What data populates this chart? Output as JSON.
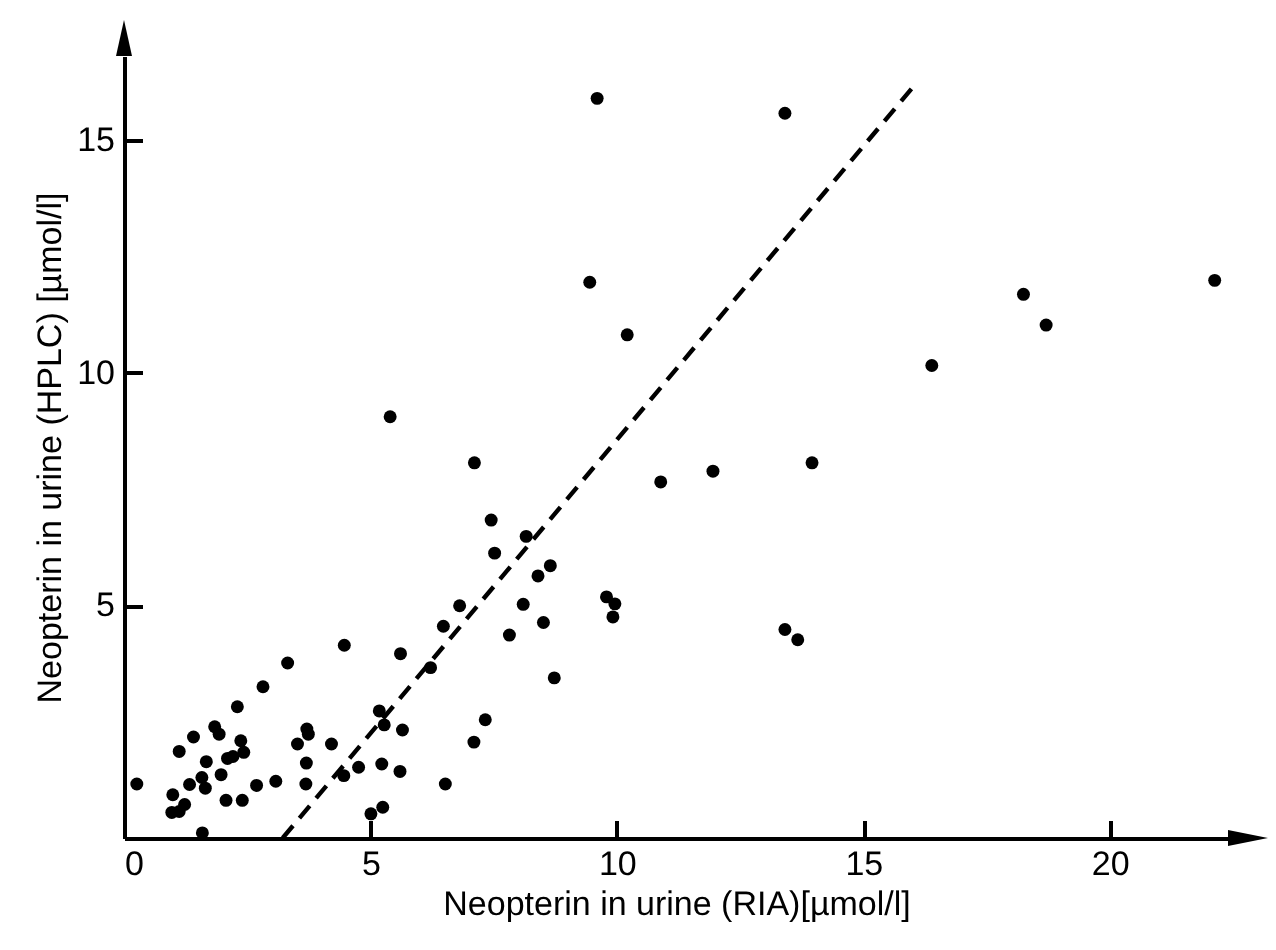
{
  "chart_data": {
    "type": "scatter",
    "xlabel": "Neopterin in urine (RIA)[µmol/l]",
    "ylabel": "Neopterin in urine (HPLC) [µmol/l]",
    "xlim": [
      0,
      22.4
    ],
    "ylim": [
      0,
      16.8
    ],
    "xticks": [
      0,
      5,
      10,
      15,
      20
    ],
    "yticks": [
      5,
      10,
      15
    ],
    "series": [
      {
        "color": "#000000",
        "marker": "circle",
        "x": [
          0.26,
          0.99,
          0.97,
          1.12,
          1.23,
          1.12,
          1.41,
          1.33,
          1.59,
          1.58,
          1.65,
          1.67,
          1.84,
          1.97,
          1.93,
          2.1,
          2.21,
          2.07,
          2.37,
          2.43,
          2.4,
          2.3,
          2.69,
          2.82,
          3.08,
          3.32,
          3.52,
          3.71,
          3.74,
          3.7,
          3.69,
          4.21,
          4.47,
          4.46,
          4.76,
          5.01,
          5.25,
          5.18,
          5.28,
          5.23,
          5.65,
          5.6,
          5.61,
          6.22,
          6.52,
          6.48,
          6.81,
          7.1,
          7.33,
          7.45,
          7.52,
          7.82,
          8.1,
          8.16,
          8.4,
          8.51,
          8.65,
          8.73,
          9.79,
          9.96,
          9.92,
          9.6,
          9.45,
          10.21,
          5.4,
          7.11,
          13.41,
          18.25,
          22.13,
          18.71,
          16.39,
          10.89,
          11.95,
          13.96,
          13.41,
          13.67
        ],
        "values": [
          1.16,
          0.93,
          0.55,
          0.57,
          0.72,
          1.86,
          2.17,
          1.15,
          0.11,
          1.3,
          1.07,
          1.64,
          2.39,
          1.36,
          2.23,
          1.71,
          1.75,
          0.81,
          2.09,
          1.84,
          0.81,
          2.82,
          1.13,
          3.25,
          1.22,
          3.76,
          2.02,
          2.34,
          2.23,
          1.61,
          1.16,
          2.02,
          4.14,
          1.34,
          1.52,
          0.52,
          0.66,
          2.73,
          2.43,
          1.59,
          2.32,
          1.43,
          3.96,
          3.66,
          1.16,
          4.55,
          4.99,
          2.06,
          2.54,
          6.83,
          6.12,
          4.36,
          5.02,
          6.48,
          5.63,
          4.63,
          5.85,
          3.44,
          5.18,
          5.03,
          4.75,
          15.89,
          11.94,
          10.81,
          9.05,
          8.06,
          15.57,
          11.68,
          11.98,
          11.02,
          10.15,
          7.65,
          7.88,
          8.06,
          4.48,
          4.26
        ]
      },
      {
        "type": "line",
        "color": "#000000",
        "line_style": "dashed",
        "marker": "none",
        "x": [
          3.22,
          16.03
        ],
        "values": [
          0,
          16.16
        ]
      }
    ]
  }
}
